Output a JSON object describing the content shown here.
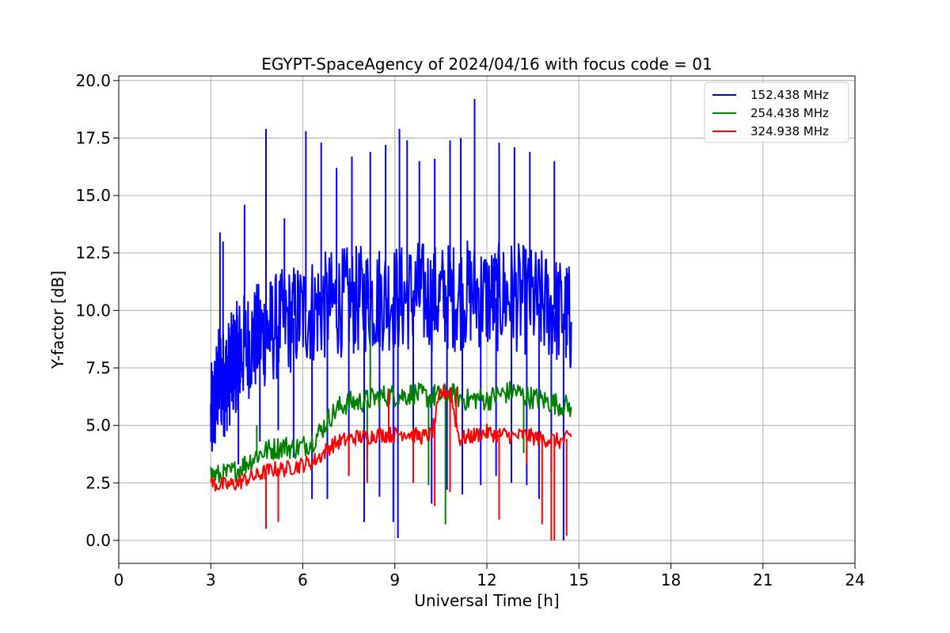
{
  "chart_data": {
    "type": "line",
    "title": "EGYPT-SpaceAgency of 2024/04/16 with focus code = 01",
    "xlabel": "Universal Time [h]",
    "ylabel": "Y-factor [dB]",
    "xlim": [
      0,
      24
    ],
    "ylim": [
      -1.0,
      20.2
    ],
    "xticks": [
      0,
      3,
      6,
      9,
      12,
      15,
      18,
      21,
      24
    ],
    "xtick_labels": [
      "0",
      "3",
      "6",
      "9",
      "12",
      "15",
      "18",
      "21",
      "24"
    ],
    "yticks": [
      0.0,
      2.5,
      5.0,
      7.5,
      10.0,
      12.5,
      15.0,
      17.5,
      20.0
    ],
    "ytick_labels": [
      "0.0",
      "2.5",
      "5.0",
      "7.5",
      "10.0",
      "12.5",
      "15.0",
      "17.5",
      "20.0"
    ],
    "grid": true,
    "legend_position": "top-right",
    "series": [
      {
        "name": "152.438 MHz",
        "color": "#0000ff",
        "x": [
          3.0,
          3.1,
          3.2,
          3.3,
          3.4,
          3.5,
          3.6,
          3.7,
          3.8,
          3.9,
          4.0,
          4.2,
          4.4,
          4.6,
          4.8,
          5.0,
          5.3,
          5.6,
          5.9,
          6.2,
          6.5,
          6.8,
          7.1,
          7.4,
          7.7,
          8.0,
          8.3,
          8.6,
          8.9,
          9.2,
          9.5,
          9.8,
          10.1,
          10.4,
          10.7,
          11.0,
          11.3,
          11.6,
          11.9,
          12.2,
          12.5,
          12.8,
          13.1,
          13.4,
          13.7,
          14.0,
          14.3,
          14.6,
          14.75
        ],
        "y": [
          5.2,
          5.8,
          6.5,
          7.2,
          6.8,
          7.0,
          7.3,
          7.6,
          7.9,
          8.1,
          8.3,
          8.5,
          8.7,
          8.9,
          9.0,
          9.2,
          9.4,
          9.6,
          9.8,
          10.0,
          10.1,
          10.2,
          10.3,
          10.4,
          10.4,
          10.5,
          10.5,
          10.6,
          10.6,
          10.5,
          10.6,
          10.7,
          10.6,
          10.5,
          10.6,
          10.6,
          10.7,
          10.8,
          10.6,
          10.5,
          10.6,
          10.7,
          10.5,
          10.4,
          10.3,
          10.2,
          10.0,
          9.8,
          9.5
        ],
        "peaks_x": [
          3.3,
          3.4,
          4.1,
          4.8,
          5.4,
          6.1,
          6.6,
          7.1,
          7.6,
          8.2,
          8.7,
          9.15,
          9.4,
          9.8,
          10.3,
          10.8,
          11.15,
          11.6,
          12.4,
          12.9,
          13.4,
          14.2,
          14.6
        ],
        "peaks_y": [
          13.4,
          13.0,
          14.6,
          17.9,
          14.0,
          17.8,
          17.3,
          16.2,
          16.7,
          16.9,
          17.2,
          17.9,
          17.4,
          16.5,
          16.6,
          17.4,
          17.5,
          19.2,
          17.3,
          17.1,
          16.9,
          16.5,
          11.3
        ],
        "dips_x": [
          3.9,
          4.6,
          5.2,
          5.7,
          6.3,
          6.8,
          7.5,
          8.0,
          8.5,
          8.95,
          9.1,
          9.6,
          10.2,
          10.7,
          11.2,
          11.8,
          12.3,
          12.8,
          13.3,
          13.7,
          14.1,
          14.5
        ],
        "dips_y": [
          3.3,
          4.3,
          4.8,
          3.6,
          1.8,
          1.8,
          2.8,
          0.8,
          1.9,
          0.8,
          0.1,
          2.5,
          1.6,
          2.2,
          2.0,
          2.4,
          2.8,
          2.5,
          2.4,
          1.8,
          3.0,
          0.0
        ]
      },
      {
        "name": "254.438 MHz",
        "color": "#008000",
        "x": [
          3.0,
          3.3,
          3.6,
          3.9,
          4.2,
          4.5,
          4.8,
          5.1,
          5.4,
          5.7,
          6.0,
          6.3,
          6.6,
          6.9,
          7.2,
          7.5,
          7.8,
          8.1,
          8.4,
          8.7,
          9.0,
          9.3,
          9.6,
          9.9,
          10.2,
          10.5,
          10.8,
          11.1,
          11.4,
          11.7,
          12.0,
          12.3,
          12.6,
          12.9,
          13.2,
          13.5,
          13.8,
          14.1,
          14.4,
          14.75
        ],
        "y": [
          2.9,
          2.8,
          2.9,
          3.1,
          3.4,
          3.7,
          3.9,
          4.0,
          4.1,
          4.0,
          4.1,
          4.3,
          4.8,
          5.4,
          5.8,
          6.0,
          6.0,
          6.1,
          6.2,
          6.3,
          6.3,
          6.3,
          6.4,
          6.3,
          6.2,
          6.3,
          6.4,
          6.2,
          6.1,
          6.2,
          6.1,
          6.3,
          6.4,
          6.5,
          6.3,
          6.2,
          6.1,
          6.0,
          5.9,
          5.8
        ],
        "peaks_x": [
          4.5,
          8.2,
          10.3,
          10.9
        ],
        "peaks_y": [
          5.0,
          9.6,
          6.8,
          6.7
        ],
        "dips_x": [
          8.1,
          10.1,
          10.65,
          13.2
        ],
        "dips_y": [
          3.5,
          2.4,
          0.7,
          3.8
        ]
      },
      {
        "name": "324.938 MHz",
        "color": "#ff0000",
        "x": [
          3.0,
          3.3,
          3.6,
          3.9,
          4.2,
          4.5,
          4.8,
          5.1,
          5.4,
          5.7,
          6.0,
          6.3,
          6.6,
          6.9,
          7.2,
          7.5,
          7.8,
          8.1,
          8.4,
          8.7,
          9.0,
          9.3,
          9.6,
          9.9,
          10.2,
          10.5,
          10.8,
          11.1,
          11.4,
          11.7,
          12.0,
          12.3,
          12.6,
          12.9,
          13.2,
          13.5,
          13.8,
          14.1,
          14.4,
          14.75
        ],
        "y": [
          2.5,
          2.4,
          2.4,
          2.5,
          2.7,
          2.8,
          3.0,
          3.1,
          3.1,
          3.2,
          3.3,
          3.4,
          3.7,
          4.1,
          4.3,
          4.4,
          4.5,
          4.5,
          4.6,
          4.6,
          4.6,
          4.7,
          4.6,
          4.5,
          4.6,
          6.4,
          6.5,
          4.4,
          4.5,
          4.6,
          4.7,
          4.6,
          4.6,
          4.5,
          4.6,
          4.5,
          4.4,
          4.4,
          4.3,
          4.5
        ],
        "peaks_x": [
          8.8,
          10.5,
          11.0
        ],
        "peaks_y": [
          6.5,
          6.6,
          6.6
        ],
        "dips_x": [
          4.8,
          5.2,
          7.5,
          8.1,
          9.6,
          10.3,
          10.8,
          12.4,
          13.3,
          13.8,
          14.1,
          14.2,
          14.6
        ],
        "dips_y": [
          0.5,
          0.8,
          2.8,
          2.5,
          2.5,
          1.5,
          2.1,
          0.9,
          3.3,
          0.7,
          0.0,
          0.0,
          0.2
        ]
      }
    ]
  }
}
